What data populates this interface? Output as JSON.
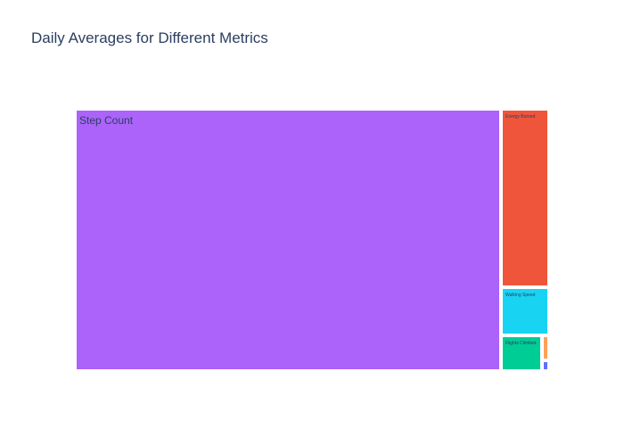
{
  "chart_data": {
    "type": "treemap",
    "title": "Daily Averages for Different Metrics",
    "labels": [
      "Step Count",
      "Energy Burned",
      "Walking Speed",
      "Flights Climbed",
      "",
      ""
    ],
    "relative_values": [
      0.8953,
      0.069,
      0.0182,
      0.0109,
      0.0033,
      0.0016
    ],
    "colors": [
      "#ab63fa",
      "#ef553b",
      "#19d3f3",
      "#00cc96",
      "#ffa15a",
      "#636efa"
    ]
  }
}
